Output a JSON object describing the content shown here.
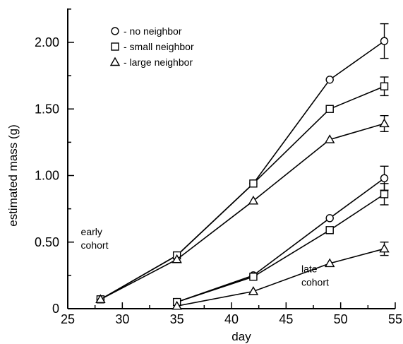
{
  "chart_data": {
    "type": "line",
    "xlabel": "day",
    "ylabel": "estimated mass  (g)",
    "xlim": [
      25,
      55
    ],
    "ylim": [
      0,
      2.0
    ],
    "x_ticks": [
      25,
      30,
      35,
      40,
      45,
      50,
      55
    ],
    "x_tick_labels": [
      "25",
      "30",
      "35",
      "40",
      "45",
      "50",
      "55"
    ],
    "y_ticks": [
      0,
      0.5,
      1.0,
      1.5,
      2.0
    ],
    "y_tick_labels": [
      "0",
      "0.50",
      "1.00",
      "1.50",
      "2.00"
    ],
    "legend": {
      "placement": "top-left",
      "entries": [
        {
          "marker": "circle",
          "label": "- no neighbor"
        },
        {
          "marker": "square",
          "label": "- small neighbor"
        },
        {
          "marker": "triangle",
          "label": "- large neighbor"
        }
      ]
    },
    "annotations": [
      {
        "lines": [
          "early",
          "cohort"
        ],
        "x": 26.2,
        "y": 0.5
      },
      {
        "lines": [
          "late",
          "cohort"
        ],
        "x": 46.4,
        "y": 0.22
      }
    ],
    "series": [
      {
        "marker": "circle",
        "cohort": "early",
        "x": [
          28,
          35,
          42,
          49,
          54
        ],
        "y": [
          0.07,
          0.4,
          0.94,
          1.72,
          2.01
        ],
        "err": [
          0,
          0,
          0,
          0,
          0.13
        ]
      },
      {
        "marker": "square",
        "cohort": "early",
        "x": [
          28,
          35,
          42,
          49,
          54
        ],
        "y": [
          0.07,
          0.4,
          0.94,
          1.5,
          1.67
        ],
        "err": [
          0,
          0,
          0,
          0,
          0.07
        ]
      },
      {
        "marker": "triangle",
        "cohort": "early",
        "x": [
          28,
          35,
          42,
          49,
          54
        ],
        "y": [
          0.07,
          0.37,
          0.81,
          1.27,
          1.39
        ],
        "err": [
          0,
          0,
          0,
          0,
          0.06
        ]
      },
      {
        "marker": "circle",
        "cohort": "late",
        "x": [
          35,
          42,
          49,
          54
        ],
        "y": [
          0.05,
          0.25,
          0.68,
          0.98
        ],
        "err": [
          0,
          0,
          0,
          0.09
        ]
      },
      {
        "marker": "square",
        "cohort": "late",
        "x": [
          35,
          42,
          49,
          54
        ],
        "y": [
          0.05,
          0.24,
          0.59,
          0.86
        ],
        "err": [
          0,
          0,
          0,
          0.08
        ]
      },
      {
        "marker": "triangle",
        "cohort": "late",
        "x": [
          35,
          42,
          49,
          54
        ],
        "y": [
          0.02,
          0.13,
          0.34,
          0.45
        ],
        "err": [
          0,
          0,
          0,
          0.05
        ]
      }
    ]
  }
}
